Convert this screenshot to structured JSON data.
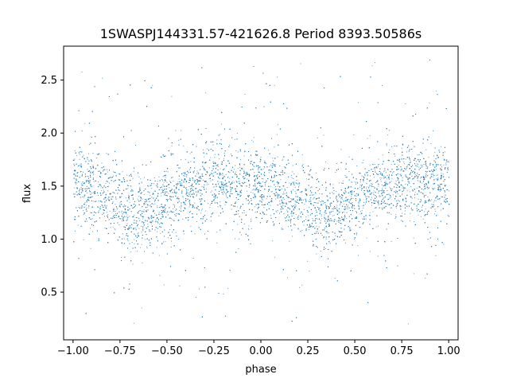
{
  "chart_data": {
    "type": "scatter",
    "title": "1SWASPJ144331.57-421626.8 Period 8393.50586s",
    "xlabel": "phase",
    "ylabel": "flux",
    "xlim": [
      -1.05,
      1.05
    ],
    "ylim": [
      0.05,
      2.82
    ],
    "xticks": [
      -1.0,
      -0.75,
      -0.5,
      -0.25,
      0.0,
      0.25,
      0.5,
      0.75,
      1.0
    ],
    "xtick_labels": [
      "−1.00",
      "−0.75",
      "−0.50",
      "−0.25",
      "0.00",
      "0.25",
      "0.50",
      "0.75",
      "1.00"
    ],
    "yticks": [
      0.5,
      1.0,
      1.5,
      2.0,
      2.5
    ],
    "ytick_labels": [
      "0.5",
      "1.0",
      "1.5",
      "2.0",
      "2.5"
    ],
    "grid": false,
    "marker_color": "#1f77b4",
    "series": [
      {
        "description_of_trend": "folded light curve: flux peaks near phase -1, -0.2, 0.8 and dips near phase -0.7, 0.3",
        "x": [
          -1.0,
          -0.9,
          -0.8,
          -0.7,
          -0.6,
          -0.5,
          -0.4,
          -0.3,
          -0.2,
          -0.1,
          0.0,
          0.1,
          0.2,
          0.3,
          0.4,
          0.5,
          0.6,
          0.7,
          0.8,
          0.9,
          1.0
        ],
        "y_mean": [
          1.5,
          1.48,
          1.38,
          1.27,
          1.27,
          1.36,
          1.47,
          1.53,
          1.55,
          1.53,
          1.5,
          1.47,
          1.38,
          1.27,
          1.27,
          1.36,
          1.47,
          1.53,
          1.55,
          1.53,
          1.5
        ],
        "y_scatter_sd": 0.17,
        "y_min": 0.2,
        "y_max": 2.7
      }
    ]
  }
}
